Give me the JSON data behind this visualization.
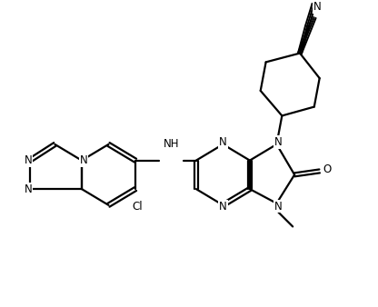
{
  "background_color": "#ffffff",
  "line_color": "#000000",
  "line_width": 1.6,
  "font_size": 8.5,
  "figsize": [
    4.16,
    3.38
  ],
  "dpi": 100,
  "xlim": [
    0,
    10
  ],
  "ylim": [
    0,
    8.5
  ]
}
